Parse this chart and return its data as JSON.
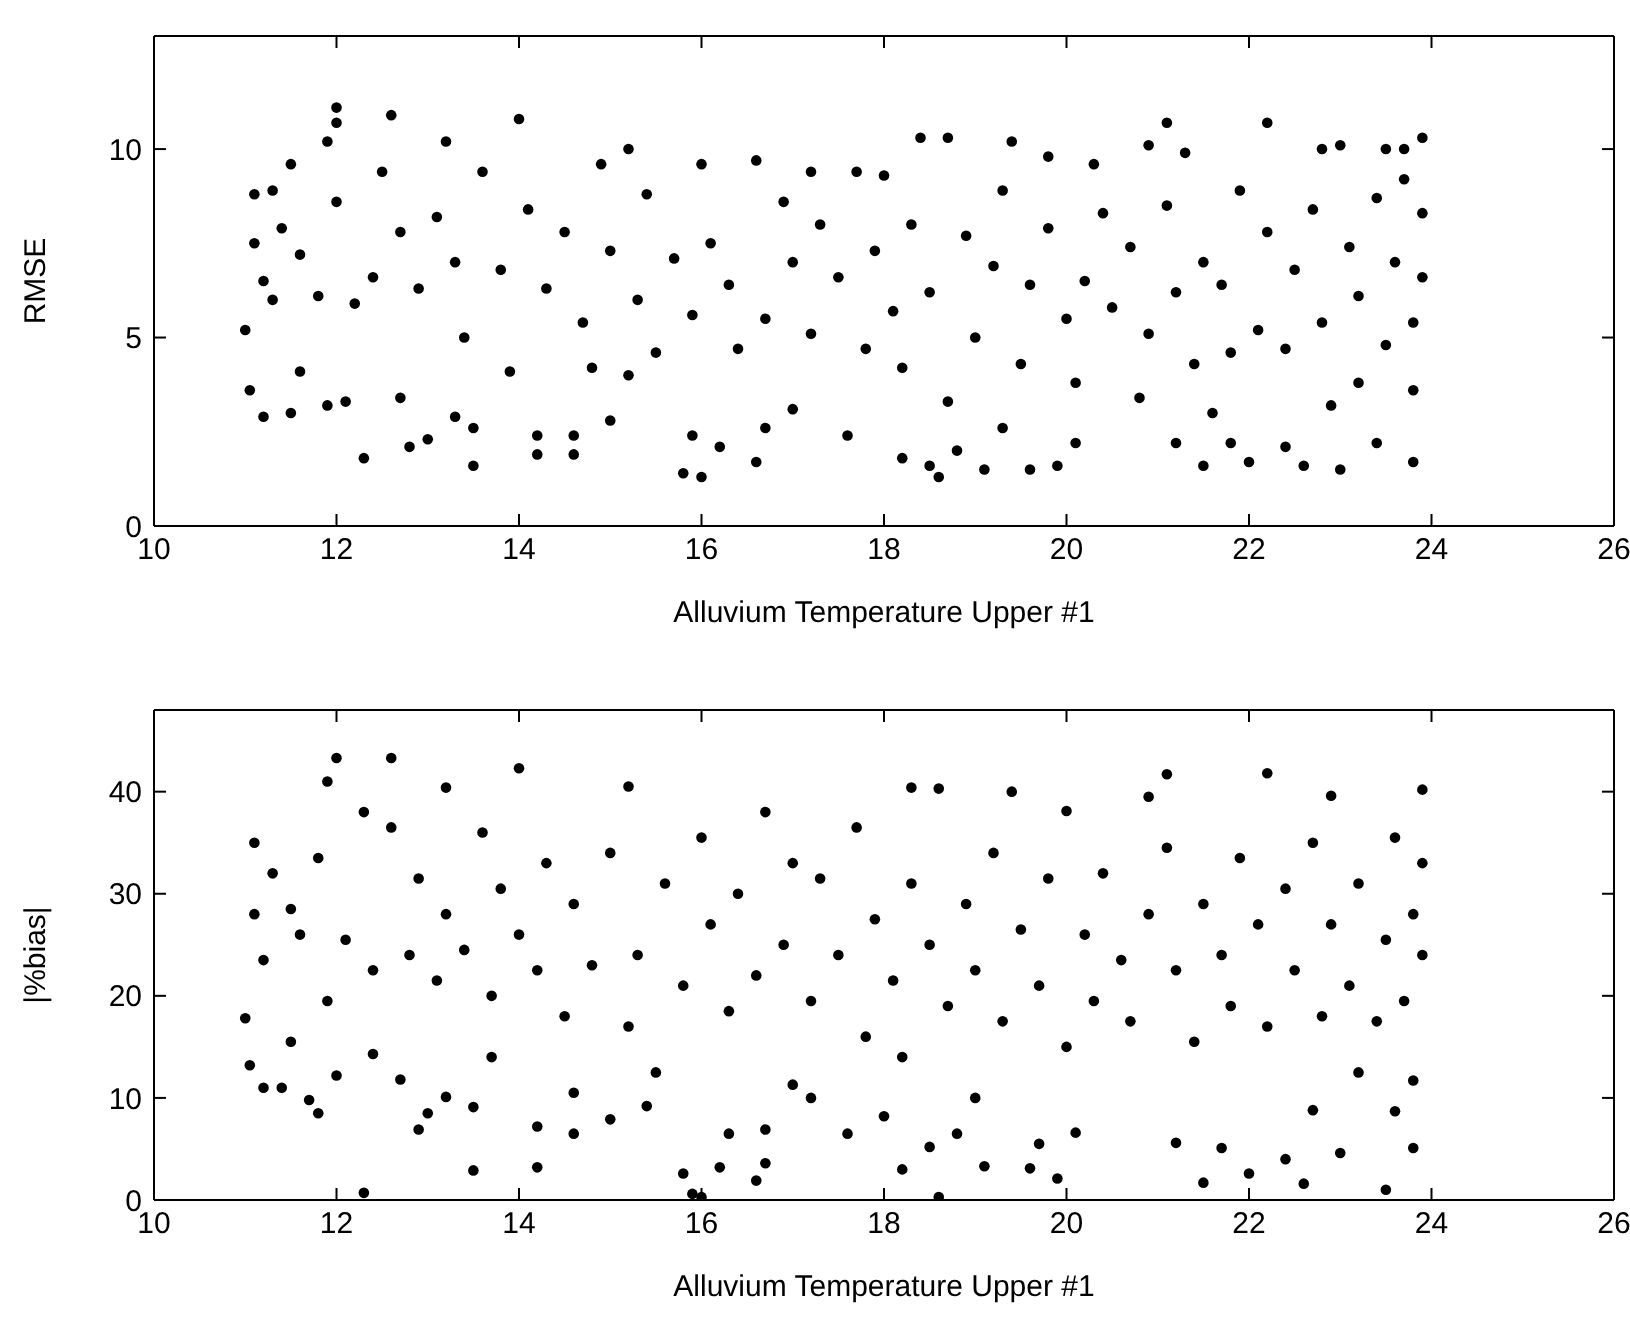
{
  "chart_data": [
    {
      "type": "scatter",
      "xlabel": "Alluvium Temperature Upper #1",
      "ylabel": "RMSE",
      "xlim": [
        10,
        26
      ],
      "xticks": [
        10,
        12,
        14,
        16,
        18,
        20,
        22,
        24,
        26
      ],
      "ylim": [
        0,
        13
      ],
      "yticks": [
        0,
        5,
        10
      ],
      "marker": "circle",
      "color": "#000000",
      "x": [
        11.0,
        11.05,
        11.1,
        11.2,
        11.3,
        11.5,
        11.5,
        11.6,
        11.9,
        12.0,
        12.0,
        11.9,
        12.1,
        12.3,
        12.6,
        12.7,
        12.8,
        13.0,
        13.2,
        13.3,
        13.5,
        13.5,
        14.0,
        14.2,
        14.2,
        14.6,
        14.6,
        14.9,
        15.0,
        15.2,
        15.8,
        16.0,
        15.9,
        16.2,
        16.6,
        16.7,
        17.0,
        17.2,
        17.6,
        18.0,
        18.2,
        18.4,
        18.5,
        18.6,
        18.7,
        18.8,
        19.1,
        19.3,
        19.4,
        19.6,
        19.8,
        19.9,
        20.1,
        20.3,
        20.9,
        21.1,
        21.2,
        21.3,
        21.5,
        21.6,
        21.8,
        22.0,
        22.2,
        22.4,
        22.6,
        22.8,
        23.0,
        23.0,
        23.2,
        23.4,
        23.5,
        23.7,
        23.8,
        23.9,
        23.8,
        11.1,
        11.2,
        11.3,
        11.4,
        11.6,
        11.8,
        12.0,
        12.2,
        12.4,
        12.5,
        12.7,
        12.9,
        13.1,
        13.3,
        13.4,
        13.6,
        13.8,
        13.9,
        14.1,
        14.3,
        14.5,
        14.7,
        14.8,
        15.0,
        15.2,
        15.3,
        15.4,
        15.5,
        15.7,
        15.9,
        16.0,
        16.1,
        16.3,
        16.4,
        16.6,
        16.7,
        16.9,
        17.0,
        17.2,
        17.3,
        17.5,
        17.7,
        17.8,
        17.9,
        18.1,
        18.2,
        18.3,
        18.5,
        18.7,
        18.9,
        19.0,
        19.2,
        19.3,
        19.5,
        19.6,
        19.8,
        20.0,
        20.1,
        20.2,
        20.4,
        20.5,
        20.7,
        20.8,
        20.9,
        21.1,
        21.2,
        21.4,
        21.5,
        21.7,
        21.8,
        21.9,
        22.1,
        22.2,
        22.4,
        22.5,
        22.7,
        22.8,
        22.9,
        23.1,
        23.2,
        23.4,
        23.5,
        23.6,
        23.7,
        23.8,
        23.9,
        23.9
      ],
      "values": [
        5.2,
        3.6,
        8.8,
        2.9,
        6.0,
        3.0,
        9.6,
        4.1,
        3.2,
        11.1,
        10.7,
        10.2,
        3.3,
        1.8,
        10.9,
        3.4,
        2.1,
        2.3,
        10.2,
        2.9,
        1.6,
        2.6,
        10.8,
        2.4,
        1.9,
        1.9,
        2.4,
        9.6,
        2.8,
        10.0,
        1.4,
        1.3,
        2.4,
        2.1,
        1.7,
        2.6,
        3.1,
        9.4,
        2.4,
        9.3,
        1.8,
        10.3,
        1.6,
        1.3,
        10.3,
        2.0,
        1.5,
        2.6,
        10.2,
        1.5,
        9.8,
        1.6,
        2.2,
        9.6,
        10.1,
        10.7,
        2.2,
        9.9,
        1.6,
        3.0,
        2.2,
        1.7,
        10.7,
        2.1,
        1.6,
        10.0,
        10.1,
        1.5,
        3.8,
        2.2,
        10.0,
        10.0,
        1.7,
        10.3,
        3.6,
        7.5,
        6.5,
        8.9,
        7.9,
        7.2,
        6.1,
        8.6,
        5.9,
        6.6,
        9.4,
        7.8,
        6.3,
        8.2,
        7.0,
        5.0,
        9.4,
        6.8,
        4.1,
        8.4,
        6.3,
        7.8,
        5.4,
        4.2,
        7.3,
        4.0,
        6.0,
        8.8,
        4.6,
        7.1,
        5.6,
        9.6,
        7.5,
        6.4,
        4.7,
        9.7,
        5.5,
        8.6,
        7.0,
        5.1,
        8.0,
        6.6,
        9.4,
        4.7,
        7.3,
        5.7,
        4.2,
        8.0,
        6.2,
        3.3,
        7.7,
        5.0,
        6.9,
        8.9,
        4.3,
        6.4,
        7.9,
        5.5,
        3.8,
        6.5,
        8.3,
        5.8,
        7.4,
        3.4,
        5.1,
        8.5,
        6.2,
        4.3,
        7.0,
        6.4,
        4.6,
        8.9,
        5.2,
        7.8,
        4.7,
        6.8,
        8.4,
        5.4,
        3.2,
        7.4,
        6.1,
        8.7,
        4.8,
        7.0,
        9.2,
        5.4,
        8.3,
        6.6
      ]
    },
    {
      "type": "scatter",
      "xlabel": "Alluvium Temperature Upper #1",
      "ylabel": "|%bias|",
      "xlim": [
        10,
        26
      ],
      "xticks": [
        10,
        12,
        14,
        16,
        18,
        20,
        22,
        24,
        26
      ],
      "ylim": [
        0,
        48
      ],
      "yticks": [
        0,
        10,
        20,
        30,
        40
      ],
      "marker": "circle",
      "color": "#000000",
      "x": [
        11.0,
        11.05,
        11.1,
        11.2,
        11.4,
        11.5,
        11.8,
        11.7,
        12.0,
        12.0,
        11.9,
        12.3,
        12.4,
        12.6,
        12.7,
        12.9,
        13.0,
        13.2,
        13.2,
        13.5,
        13.5,
        13.7,
        14.0,
        14.2,
        14.2,
        14.6,
        14.6,
        15.0,
        15.2,
        15.4,
        15.8,
        15.9,
        16.0,
        16.2,
        16.3,
        16.6,
        16.7,
        16.7,
        17.0,
        17.2,
        17.6,
        18.0,
        18.2,
        18.3,
        18.5,
        18.6,
        18.6,
        18.8,
        19.0,
        19.1,
        19.4,
        19.6,
        19.7,
        19.9,
        20.1,
        20.0,
        20.9,
        21.1,
        21.2,
        21.5,
        21.7,
        22.0,
        22.2,
        22.4,
        22.6,
        22.7,
        23.0,
        22.9,
        23.2,
        23.5,
        23.6,
        23.8,
        23.9,
        23.8,
        11.1,
        11.2,
        11.3,
        11.5,
        11.6,
        11.8,
        11.9,
        12.1,
        12.3,
        12.4,
        12.6,
        12.8,
        12.9,
        13.1,
        13.2,
        13.4,
        13.6,
        13.7,
        13.8,
        14.0,
        14.2,
        14.3,
        14.5,
        14.6,
        14.8,
        15.0,
        15.2,
        15.3,
        15.5,
        15.6,
        15.8,
        16.0,
        16.1,
        16.3,
        16.4,
        16.6,
        16.7,
        16.9,
        17.0,
        17.2,
        17.3,
        17.5,
        17.7,
        17.8,
        17.9,
        18.1,
        18.2,
        18.3,
        18.5,
        18.7,
        18.9,
        19.0,
        19.2,
        19.3,
        19.5,
        19.7,
        19.8,
        20.0,
        20.2,
        20.3,
        20.4,
        20.6,
        20.7,
        20.9,
        21.1,
        21.2,
        21.4,
        21.5,
        21.7,
        21.8,
        21.9,
        22.1,
        22.2,
        22.4,
        22.5,
        22.7,
        22.8,
        22.9,
        23.1,
        23.2,
        23.4,
        23.5,
        23.6,
        23.7,
        23.8,
        23.9,
        23.9
      ],
      "values": [
        17.8,
        13.2,
        35,
        11,
        11,
        15.5,
        8.5,
        9.8,
        43.3,
        12.2,
        41,
        0.7,
        14.3,
        43.3,
        11.8,
        6.9,
        8.5,
        40.4,
        10.1,
        2.9,
        9.1,
        14,
        42.3,
        7.2,
        3.2,
        6.5,
        10.5,
        7.9,
        40.5,
        9.2,
        2.6,
        0.6,
        0.3,
        3.2,
        6.5,
        1.9,
        3.6,
        6.9,
        11.3,
        10,
        6.5,
        8.2,
        3,
        40.4,
        5.2,
        0.3,
        40.3,
        6.5,
        10,
        3.3,
        40,
        3.1,
        5.5,
        2.1,
        6.6,
        38.1,
        39.5,
        41.7,
        5.6,
        1.7,
        5.1,
        2.6,
        41.8,
        4,
        1.6,
        8.8,
        4.6,
        39.6,
        12.5,
        1,
        8.7,
        5.1,
        40.2,
        11.7,
        28,
        23.5,
        32,
        28.5,
        26,
        33.5,
        19.5,
        25.5,
        38,
        22.5,
        36.5,
        24,
        31.5,
        21.5,
        28,
        24.5,
        36,
        20,
        30.5,
        26,
        22.5,
        33,
        18,
        29,
        23,
        34,
        17,
        24,
        12.5,
        31,
        21,
        35.5,
        27,
        18.5,
        30,
        22,
        38,
        25,
        33,
        19.5,
        31.5,
        24,
        36.5,
        16,
        27.5,
        21.5,
        14,
        31,
        25,
        19,
        29,
        22.5,
        34,
        17.5,
        26.5,
        21,
        31.5,
        15,
        26,
        19.5,
        32,
        23.5,
        17.5,
        28,
        34.5,
        22.5,
        15.5,
        29,
        24,
        19,
        33.5,
        27,
        17,
        30.5,
        22.5,
        35,
        18,
        27,
        21,
        31,
        17.5,
        25.5,
        35.5,
        19.5,
        28,
        24,
        33
      ]
    }
  ]
}
